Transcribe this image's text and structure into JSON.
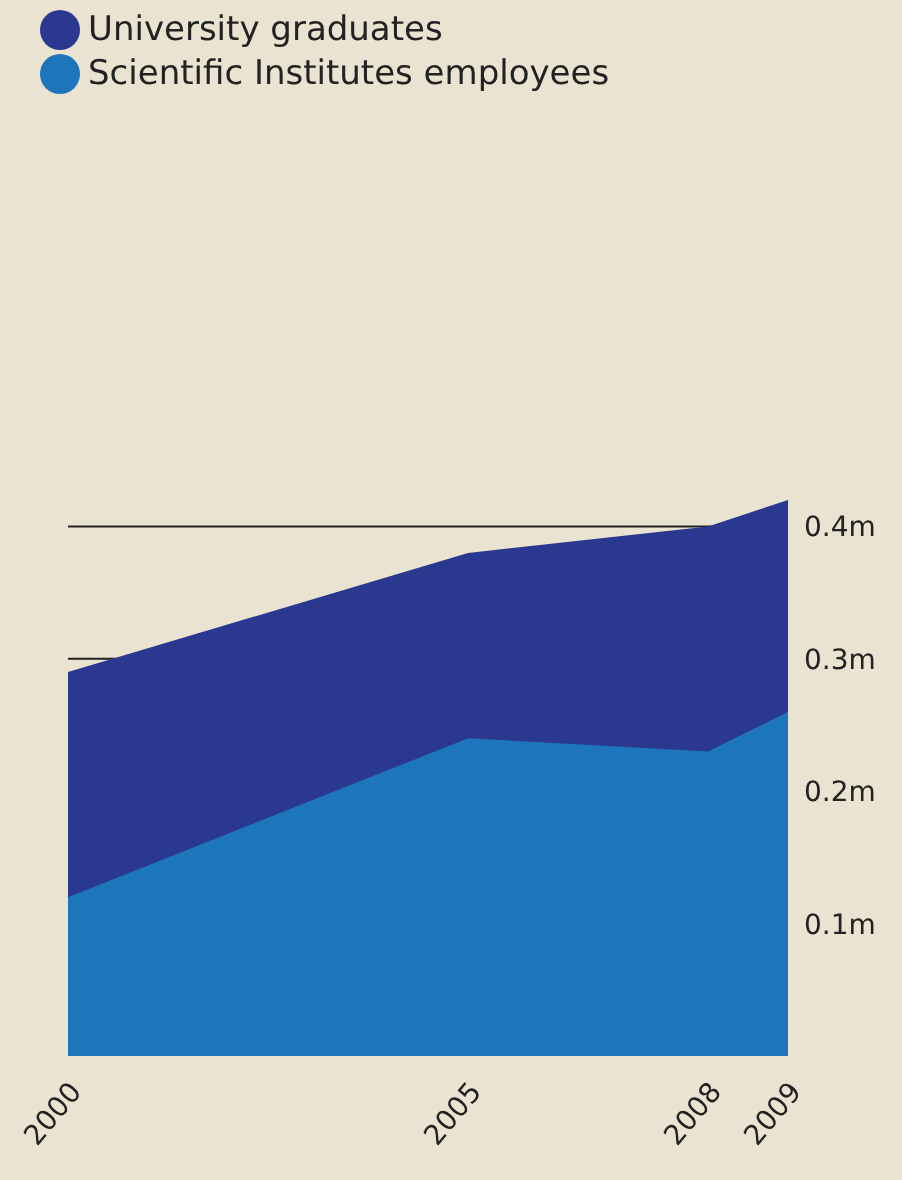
{
  "chart_data": {
    "type": "area",
    "x": [
      2000,
      2005,
      2008,
      2009
    ],
    "series": [
      {
        "name": "University graduates",
        "color": "#2b388f",
        "values": [
          0.29,
          0.38,
          0.4,
          0.42
        ]
      },
      {
        "name": "Scientific Institutes employees",
        "color": "#1d75bc",
        "values": [
          0.12,
          0.24,
          0.23,
          0.26
        ]
      }
    ],
    "xlim": [
      2000,
      2009
    ],
    "xticks": [
      2000,
      2005,
      2008,
      2009
    ],
    "ylim": [
      0,
      0.42
    ],
    "yticks": [
      {
        "value": 0.1,
        "label": "0.1m"
      },
      {
        "value": 0.2,
        "label": "0.2m"
      },
      {
        "value": 0.3,
        "label": "0.3m"
      },
      {
        "value": 0.4,
        "label": "0.4m"
      }
    ],
    "grid": "y",
    "legend": "top left"
  }
}
